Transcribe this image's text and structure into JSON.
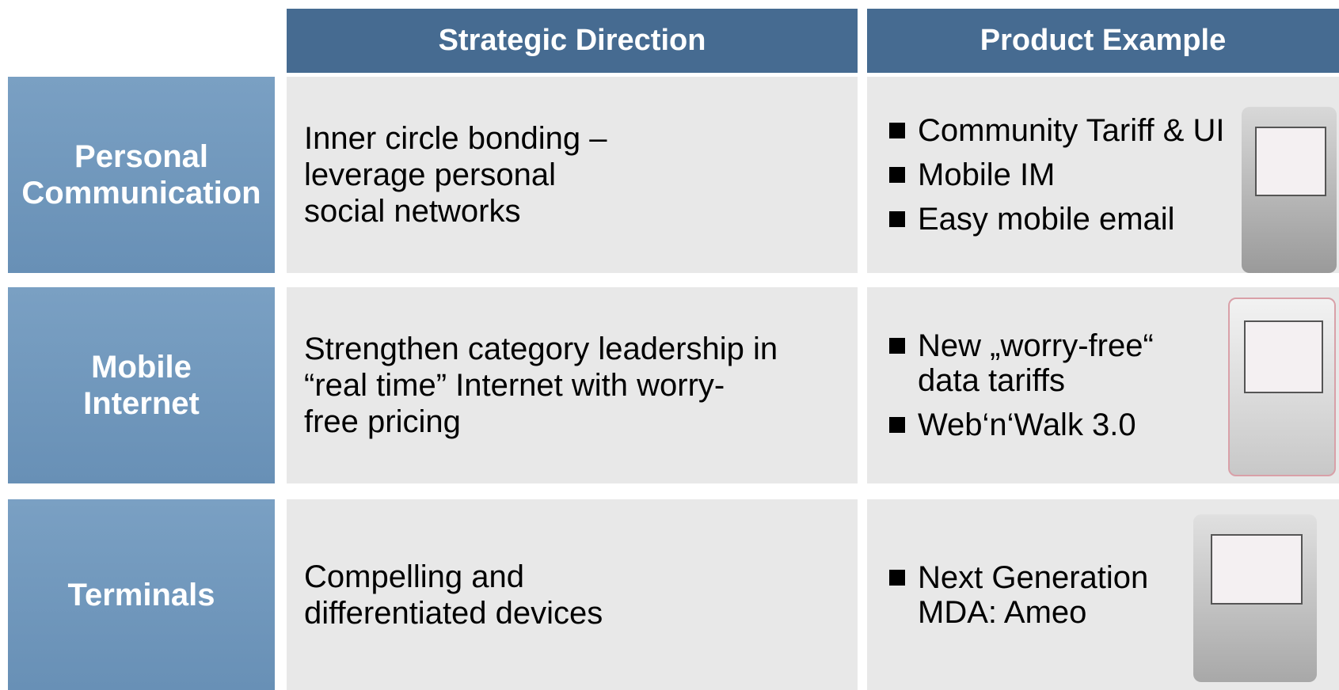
{
  "header": {
    "columns": [
      "Strategic Direction",
      "Product Example"
    ]
  },
  "rows": [
    {
      "label": [
        "Personal",
        "Communication"
      ],
      "direction": [
        "Inner circle bonding –",
        "leverage personal",
        "social networks"
      ],
      "products": [
        [
          "Community Tariff & UI"
        ],
        [
          "Mobile IM"
        ],
        [
          "Easy mobile email"
        ]
      ]
    },
    {
      "label": [
        "Mobile",
        "Internet"
      ],
      "direction": [
        "Strengthen category leadership in",
        "“real time” Internet with worry-",
        "free pricing"
      ],
      "products": [
        [
          "New „worry-free“",
          "data tariffs"
        ],
        [
          "Web‘n‘Walk 3.0"
        ]
      ]
    },
    {
      "label": [
        "Terminals"
      ],
      "direction": [
        "Compelling and",
        "differentiated devices"
      ],
      "products": [
        [
          "Next Generation",
          "MDA: Ameo"
        ]
      ]
    }
  ]
}
